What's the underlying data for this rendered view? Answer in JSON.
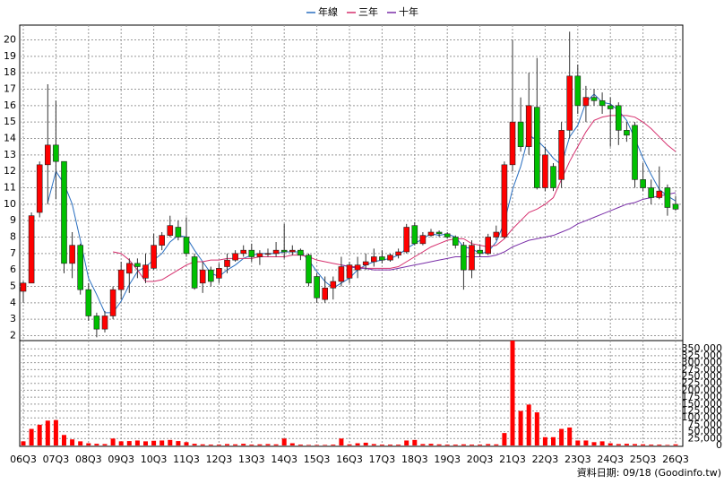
{
  "chart_data": {
    "type": "candlestick",
    "source": "資料日期: 09/18 (Goodinfo.tw)",
    "categories": [
      "06Q3",
      null,
      null,
      null,
      "07Q3",
      null,
      null,
      null,
      "08Q3",
      null,
      null,
      null,
      "09Q3",
      null,
      null,
      null,
      "10Q3",
      null,
      null,
      null,
      "11Q3",
      null,
      null,
      null,
      "12Q3",
      null,
      null,
      null,
      "13Q3",
      null,
      null,
      null,
      "14Q3",
      null,
      null,
      null,
      "15Q3",
      null,
      null,
      null,
      "16Q3",
      null,
      null,
      null,
      "17Q3",
      null,
      null,
      null,
      "18Q3",
      null,
      null,
      null,
      "19Q3",
      null,
      null,
      null,
      "20Q3",
      null,
      null,
      null,
      "21Q3",
      null,
      null,
      null,
      "22Q3",
      null,
      null,
      null,
      "23Q3",
      null,
      null,
      null,
      "24Q3",
      null,
      null,
      null,
      "25Q3",
      null,
      null,
      null,
      "26Q3"
    ],
    "up_color": "#ff0000",
    "down_color": "#00c000",
    "open": [
      4.7,
      5.2,
      9.5,
      12.4,
      13.6,
      12.6,
      6.4,
      7.5,
      4.8,
      3.2,
      2.4,
      3.2,
      4.8,
      5.8,
      6.4,
      5.5,
      6.1,
      7.5,
      8.1,
      8.6,
      8.0,
      6.8,
      5.2,
      6.0,
      5.5,
      6.2,
      6.6,
      7.0,
      7.2,
      6.8,
      7.0,
      7.0,
      7.2,
      7.1,
      7.2,
      6.9,
      5.6,
      4.2,
      4.9,
      5.3,
      5.5,
      6.0,
      6.3,
      6.5,
      6.8,
      6.6,
      6.9,
      7.1,
      8.7,
      7.6,
      8.1,
      8.3,
      8.2,
      8.0,
      7.5,
      6.0,
      7.2,
      7.0,
      8.0,
      8.0,
      12.4,
      15.0,
      13.5,
      15.9,
      11.0,
      12.3,
      11.5,
      14.5,
      17.8,
      16.0,
      16.5,
      16.3,
      16.0,
      16.0,
      14.5,
      14.8,
      11.5,
      11.0,
      10.4,
      11.0,
      10.0
    ],
    "high": [
      5.3,
      9.5,
      12.6,
      17.3,
      16.3,
      12.6,
      8.3,
      7.6,
      5.2,
      3.4,
      3.5,
      5.0,
      6.5,
      6.7,
      6.7,
      7.0,
      8.2,
      8.3,
      9.3,
      9.0,
      9.2,
      7.0,
      6.5,
      6.2,
      6.4,
      7.0,
      7.2,
      7.5,
      7.6,
      7.2,
      7.3,
      7.7,
      8.8,
      7.5,
      7.3,
      7.0,
      5.8,
      5.6,
      5.6,
      6.8,
      6.5,
      6.8,
      7.0,
      7.3,
      7.2,
      7.0,
      7.3,
      8.8,
      8.9,
      8.3,
      8.5,
      8.4,
      8.3,
      8.1,
      7.7,
      7.8,
      7.5,
      8.2,
      8.7,
      12.6,
      20.0,
      16.5,
      18.0,
      18.9,
      13.5,
      12.5,
      15.0,
      20.5,
      18.5,
      17.2,
      17.0,
      16.8,
      16.5,
      16.2,
      15.0,
      15.0,
      12.5,
      11.5,
      12.3,
      11.2,
      10.5
    ],
    "low": [
      4.0,
      5.2,
      9.2,
      10.0,
      10.3,
      5.8,
      5.5,
      4.5,
      2.9,
      1.9,
      2.2,
      3.0,
      4.2,
      4.6,
      5.5,
      5.2,
      6.0,
      7.2,
      8.0,
      7.8,
      6.8,
      4.8,
      4.6,
      5.0,
      5.2,
      5.8,
      6.5,
      6.8,
      6.5,
      6.3,
      6.8,
      6.8,
      6.7,
      6.9,
      6.6,
      5.0,
      4.0,
      4.0,
      4.2,
      5.0,
      5.2,
      5.5,
      6.0,
      6.2,
      6.4,
      6.5,
      6.7,
      7.0,
      7.5,
      7.5,
      8.0,
      8.0,
      7.9,
      7.3,
      4.8,
      5.5,
      6.8,
      6.9,
      7.8,
      7.9,
      12.0,
      13.2,
      13.0,
      10.9,
      10.8,
      10.8,
      11.0,
      14.0,
      15.5,
      15.0,
      16.0,
      15.5,
      13.5,
      13.6,
      13.8,
      11.0,
      10.8,
      10.0,
      10.3,
      9.3,
      9.6
    ],
    "close": [
      5.2,
      9.3,
      12.4,
      13.6,
      12.6,
      6.4,
      7.5,
      4.8,
      3.2,
      2.4,
      3.2,
      4.8,
      6.0,
      6.4,
      6.2,
      6.3,
      7.5,
      8.1,
      8.7,
      8.0,
      7.0,
      4.9,
      6.0,
      5.3,
      6.1,
      6.6,
      7.0,
      7.2,
      6.8,
      7.0,
      7.0,
      7.2,
      7.1,
      7.2,
      6.9,
      5.2,
      4.3,
      4.9,
      5.3,
      6.2,
      6.3,
      6.3,
      6.5,
      6.8,
      6.6,
      6.9,
      7.1,
      8.6,
      7.6,
      8.1,
      8.3,
      8.2,
      8.0,
      7.5,
      6.0,
      7.5,
      7.0,
      8.0,
      8.3,
      12.4,
      15.0,
      13.5,
      16.0,
      11.0,
      13.0,
      11.0,
      14.5,
      17.8,
      16.0,
      16.5,
      16.3,
      16.0,
      15.8,
      14.5,
      14.2,
      11.5,
      11.0,
      10.4,
      10.8,
      9.8,
      9.7
    ],
    "series": [
      {
        "name": "年線",
        "color": "#2a6fc0",
        "values": [
          null,
          null,
          null,
          10.1,
          12.0,
          11.25,
          10.0,
          7.8,
          5.5,
          4.5,
          3.4,
          3.4,
          4.1,
          5.1,
          5.9,
          6.2,
          6.6,
          7.0,
          7.7,
          8.1,
          8.0,
          7.2,
          6.5,
          5.8,
          5.6,
          6.0,
          6.3,
          6.7,
          6.9,
          7.0,
          7.0,
          7.0,
          7.1,
          7.1,
          7.1,
          6.6,
          5.9,
          5.3,
          4.9,
          5.2,
          5.5,
          6.0,
          6.3,
          6.5,
          6.6,
          6.7,
          6.9,
          7.3,
          7.6,
          7.9,
          8.2,
          8.1,
          8.2,
          8.0,
          7.4,
          7.3,
          7.0,
          7.1,
          7.7,
          8.9,
          10.9,
          12.3,
          14.2,
          13.9,
          13.4,
          12.8,
          12.4,
          14.1,
          14.8,
          16.2,
          16.7,
          16.2,
          16.1,
          15.7,
          15.1,
          14.0,
          12.8,
          11.8,
          10.9,
          10.5,
          10.2
        ]
      },
      {
        "name": "三年",
        "color": "#d6306e",
        "values": [
          null,
          null,
          null,
          null,
          null,
          null,
          null,
          null,
          null,
          null,
          null,
          7.1,
          7.0,
          6.6,
          6.0,
          5.3,
          5.3,
          5.4,
          5.7,
          6.0,
          6.3,
          6.5,
          6.5,
          6.6,
          6.6,
          6.7,
          6.7,
          6.7,
          6.7,
          6.8,
          6.8,
          6.8,
          6.8,
          6.9,
          6.9,
          6.8,
          6.6,
          6.5,
          6.4,
          6.3,
          6.2,
          6.2,
          6.1,
          6.1,
          6.1,
          6.1,
          6.2,
          6.5,
          6.8,
          7.1,
          7.4,
          7.6,
          7.8,
          7.9,
          7.9,
          7.6,
          7.5,
          7.4,
          7.5,
          7.9,
          8.5,
          9.0,
          9.5,
          9.7,
          10.0,
          10.4,
          11.5,
          12.6,
          13.5,
          14.4,
          15.1,
          15.3,
          15.4,
          15.4,
          15.4,
          15.3,
          15.0,
          14.6,
          14.1,
          13.6,
          13.2
        ]
      },
      {
        "name": "十年",
        "color": "#7a2fa8",
        "values": [
          null,
          null,
          null,
          null,
          null,
          null,
          null,
          null,
          null,
          null,
          null,
          null,
          null,
          null,
          null,
          null,
          null,
          null,
          null,
          null,
          null,
          null,
          null,
          null,
          null,
          null,
          null,
          null,
          null,
          null,
          null,
          null,
          null,
          null,
          null,
          null,
          null,
          null,
          null,
          6.3,
          6.2,
          6.1,
          6.1,
          6.0,
          6.0,
          6.0,
          6.1,
          6.2,
          6.3,
          6.4,
          6.5,
          6.6,
          6.7,
          6.8,
          6.8,
          6.8,
          6.8,
          6.8,
          6.9,
          7.1,
          7.4,
          7.6,
          7.8,
          7.9,
          8.0,
          8.1,
          8.3,
          8.5,
          8.8,
          9.0,
          9.2,
          9.4,
          9.6,
          9.8,
          10.0,
          10.1,
          10.3,
          10.4,
          10.5,
          10.6,
          10.7
        ]
      }
    ],
    "volume": {
      "axis": "y2",
      "color": "#ff0000",
      "values": [
        15000,
        60000,
        75000,
        90000,
        92000,
        38000,
        22000,
        15000,
        8000,
        6000,
        5000,
        25000,
        15000,
        16000,
        18000,
        15000,
        17000,
        18000,
        20000,
        16000,
        12000,
        6000,
        4000,
        3000,
        3000,
        5000,
        4000,
        6000,
        3000,
        4000,
        5000,
        4000,
        25000,
        8000,
        3000,
        2000,
        2000,
        2000,
        3000,
        25000,
        4000,
        8000,
        10000,
        5000,
        3000,
        3000,
        3000,
        18000,
        20000,
        5000,
        6000,
        4000,
        3000,
        3000,
        4000,
        3000,
        3000,
        5000,
        4000,
        45000,
        380000,
        125000,
        148000,
        120000,
        30000,
        30000,
        60000,
        65000,
        18000,
        18000,
        12000,
        15000,
        8000,
        5000,
        6000,
        5000,
        4000,
        3000,
        3000,
        2000,
        4000
      ]
    },
    "ylim": [
      1.7,
      20.9
    ],
    "yticks": [
      2,
      3,
      4,
      5,
      6,
      7,
      8,
      9,
      10,
      11,
      12,
      13,
      14,
      15,
      16,
      17,
      18,
      19,
      20
    ],
    "y2lim": [
      0,
      380000
    ],
    "y2ticks": [
      0,
      {
        "value": 25000,
        "label": "25,000"
      },
      {
        "value": 50000,
        "label": "50,000"
      },
      {
        "value": 75000,
        "label": "75,000"
      },
      {
        "value": 100000,
        "label": "100,000"
      },
      {
        "value": 125000,
        "label": "125,000"
      },
      {
        "value": 150000,
        "label": "150,000"
      },
      {
        "value": 175000,
        "label": "175,000"
      },
      {
        "value": 200000,
        "label": "200,000"
      },
      {
        "value": 225000,
        "label": "225,000"
      },
      {
        "value": 250000,
        "label": "250,000"
      },
      {
        "value": 275000,
        "label": "275,000"
      },
      {
        "value": 300000,
        "label": "300,000"
      },
      {
        "value": 325000,
        "label": "325,000"
      },
      {
        "value": 350000,
        "label": "350,000"
      }
    ],
    "grid": true
  }
}
